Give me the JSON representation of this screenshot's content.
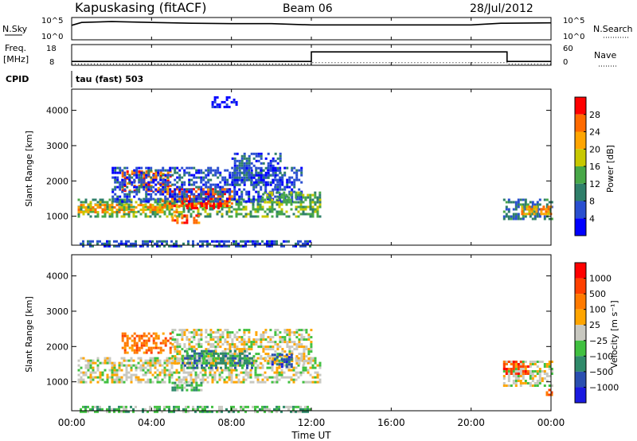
{
  "header": {
    "station": "Kapuskasing (fitACF)",
    "beam": "Beam 06",
    "date": "28/Jul/2012"
  },
  "noise_panel": {
    "left_label": "N.Sky",
    "right_label": "N.Search",
    "ticks": [
      "10^5",
      "10^0"
    ]
  },
  "freq_panel": {
    "left_label_1": "Freq.",
    "left_label_2": "[MHz]",
    "right_label": "Nave",
    "left_ticks": [
      "18",
      "8"
    ],
    "right_ticks": [
      "60",
      "0"
    ]
  },
  "cpid": {
    "label": "CPID",
    "mode": "tau (fast) 503"
  },
  "colors": {
    "power_scale": [
      "#0000ff",
      "#2a4fd0",
      "#2f7f6a",
      "#48a848",
      "#c8c800",
      "#ffa500",
      "#ff6a00",
      "#ff0000"
    ],
    "velocity_scale": [
      "#1a1ae0",
      "#2a4fb0",
      "#2f8a6a",
      "#40c040",
      "#c8c8c0",
      "#ffa500",
      "#ff7a00",
      "#ff4000",
      "#ff0000"
    ],
    "ground_scatter": "#c8c8c0"
  },
  "chart_data": [
    {
      "type": "line",
      "name": "noise",
      "x_range_hours": [
        0,
        24
      ],
      "levels": [
        {
          "x": [
            0,
            0.5,
            2,
            4,
            6,
            8,
            10,
            12,
            16,
            20,
            21.5,
            24
          ],
          "y": [
            3.5,
            4.2,
            4.4,
            4.2,
            4.0,
            3.9,
            3.9,
            3.6,
            3.6,
            3.6,
            4.0,
            4.1
          ]
        }
      ]
    },
    {
      "type": "line",
      "name": "frequency",
      "x_range_hours": [
        0,
        24
      ],
      "x": [
        0,
        12,
        12,
        21.8,
        21.8,
        24
      ],
      "y": [
        10,
        10,
        15,
        15,
        10,
        10
      ],
      "nave_x": [
        0,
        12,
        12,
        21.8,
        21.8,
        24
      ],
      "nave_y": [
        4,
        4,
        8,
        8,
        4,
        4
      ]
    },
    {
      "type": "heatmap",
      "title": "",
      "xlabel": "Time UT",
      "ylabel": "Slant Range [km]",
      "xlim": [
        0,
        24
      ],
      "ylim": [
        180,
        4600
      ],
      "xticks": [
        "00:00",
        "04:00",
        "08:00",
        "12:00",
        "16:00",
        "20:00",
        "00:00"
      ],
      "yticks": [
        "1000",
        "2000",
        "3000",
        "4000"
      ],
      "colorbar": {
        "label": "Power [dB]",
        "ticks": [
          "28",
          "24",
          "20",
          "16",
          "12",
          "8",
          "4"
        ]
      },
      "regions": [
        {
          "t0": 0.3,
          "t1": 12.4,
          "r0": 1000,
          "r1": 1500,
          "level": 3
        },
        {
          "t0": 0.3,
          "t1": 5.5,
          "r0": 1100,
          "r1": 1350,
          "level": 5
        },
        {
          "t0": 4.5,
          "t1": 8.0,
          "r0": 1300,
          "r1": 1800,
          "level": 6
        },
        {
          "t0": 5.5,
          "t1": 7.5,
          "r0": 1200,
          "r1": 1600,
          "level": 7
        },
        {
          "t0": 5.0,
          "t1": 6.5,
          "r0": 800,
          "r1": 1050,
          "level": 6
        },
        {
          "t0": 2.5,
          "t1": 5.0,
          "r0": 1700,
          "r1": 2300,
          "level": 6
        },
        {
          "t0": 2.0,
          "t1": 11.5,
          "r0": 1400,
          "r1": 2400,
          "level": 1
        },
        {
          "t0": 8.0,
          "t1": 10.5,
          "r0": 1900,
          "r1": 2800,
          "level": 1
        },
        {
          "t0": 9.5,
          "t1": 12.4,
          "r0": 1400,
          "r1": 1700,
          "level": 3
        },
        {
          "t0": 7.0,
          "t1": 8.2,
          "r0": 4100,
          "r1": 4400,
          "level": 0
        },
        {
          "t0": 0.4,
          "t1": 12.0,
          "r0": 180,
          "r1": 320,
          "level": 1
        },
        {
          "t0": 21.6,
          "t1": 24,
          "r0": 950,
          "r1": 1500,
          "level": 2
        },
        {
          "t0": 22.5,
          "t1": 24,
          "r0": 1050,
          "r1": 1300,
          "level": 5
        }
      ]
    },
    {
      "type": "heatmap",
      "title": "",
      "xlabel": "Time UT",
      "ylabel": "Slant Range [km]",
      "xlim": [
        0,
        24
      ],
      "ylim": [
        180,
        4600
      ],
      "xticks": [
        "00:00",
        "04:00",
        "08:00",
        "12:00",
        "16:00",
        "20:00",
        "00:00"
      ],
      "yticks": [
        "1000",
        "2000",
        "3000",
        "4000"
      ],
      "colorbar": {
        "label": "Velocity [m s⁻¹]",
        "ticks": [
          "1000",
          "500",
          "100",
          "25",
          "−25",
          "−100",
          "−500",
          "−1000"
        ]
      },
      "regions": [
        {
          "t0": 0.3,
          "t1": 12.4,
          "r0": 1000,
          "r1": 1700,
          "level": 4
        },
        {
          "t0": 5.0,
          "t1": 12.0,
          "r0": 1500,
          "r1": 2500,
          "level": 4
        },
        {
          "t0": 2.5,
          "t1": 5.0,
          "r0": 1800,
          "r1": 2400,
          "level": 6
        },
        {
          "t0": 5.5,
          "t1": 9.0,
          "r0": 1400,
          "r1": 1900,
          "level": 2
        },
        {
          "t0": 5.0,
          "t1": 6.5,
          "r0": 750,
          "r1": 1000,
          "level": 3
        },
        {
          "t0": 10.0,
          "t1": 11.0,
          "r0": 1400,
          "r1": 1800,
          "level": 1
        },
        {
          "t0": 0.4,
          "t1": 12.0,
          "r0": 180,
          "r1": 320,
          "level": 3
        },
        {
          "t0": 21.6,
          "t1": 24,
          "r0": 900,
          "r1": 1600,
          "level": 4
        },
        {
          "t0": 21.6,
          "t1": 22.8,
          "r0": 1200,
          "r1": 1600,
          "level": 7
        },
        {
          "t0": 23.5,
          "t1": 24,
          "r0": 650,
          "r1": 800,
          "level": 7
        }
      ]
    }
  ]
}
